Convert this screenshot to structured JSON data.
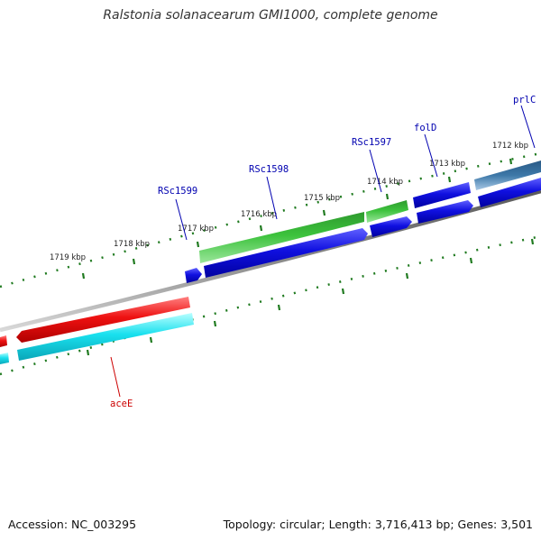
{
  "header": {
    "title": "Ralstonia solanacearum GMI1000, complete genome"
  },
  "footer": {
    "accession": "Accession: NC_003295",
    "summary": "Topology: circular; Length: 3,716,413 bp; Genes: 3,501"
  },
  "colors": {
    "backbone": "#8a8a8a",
    "tick": "#1f7a1f",
    "gene_red": "#ee1111",
    "gene_cyan": "#19e0ee",
    "gene_green": "#3cc23c",
    "gene_blue": "#1010e0",
    "gene_steel": "#3d78a8",
    "label_blue": "#0000b0",
    "label_red": "#cc0000"
  },
  "scale": {
    "unit": "kbp",
    "ticks": [
      {
        "kbp": 1719,
        "label": "1719 kbp"
      },
      {
        "kbp": 1718,
        "label": "1718 kbp"
      },
      {
        "kbp": 1717,
        "label": "1717 kbp"
      },
      {
        "kbp": 1716,
        "label": "1716 kbp"
      },
      {
        "kbp": 1715,
        "label": "1715 kbp"
      },
      {
        "kbp": 1714,
        "label": "1714 kbp"
      },
      {
        "kbp": 1713,
        "label": "1713 kbp"
      },
      {
        "kbp": 1712,
        "label": "1712 kbp"
      }
    ]
  },
  "genes": [
    {
      "name": "prlC",
      "color": "gene_steel",
      "label_color": "label_blue"
    },
    {
      "name": "folD",
      "color": "gene_blue",
      "label_color": "label_blue"
    },
    {
      "name": "RSc1597",
      "color": "gene_green",
      "label_color": "label_blue"
    },
    {
      "name": "RSc1598",
      "color": "gene_green",
      "label_color": "label_blue"
    },
    {
      "name": "RSc1599",
      "color": "gene_blue",
      "label_color": "label_blue"
    },
    {
      "name": "aceE",
      "color": "gene_red",
      "label_color": "label_red"
    }
  ]
}
